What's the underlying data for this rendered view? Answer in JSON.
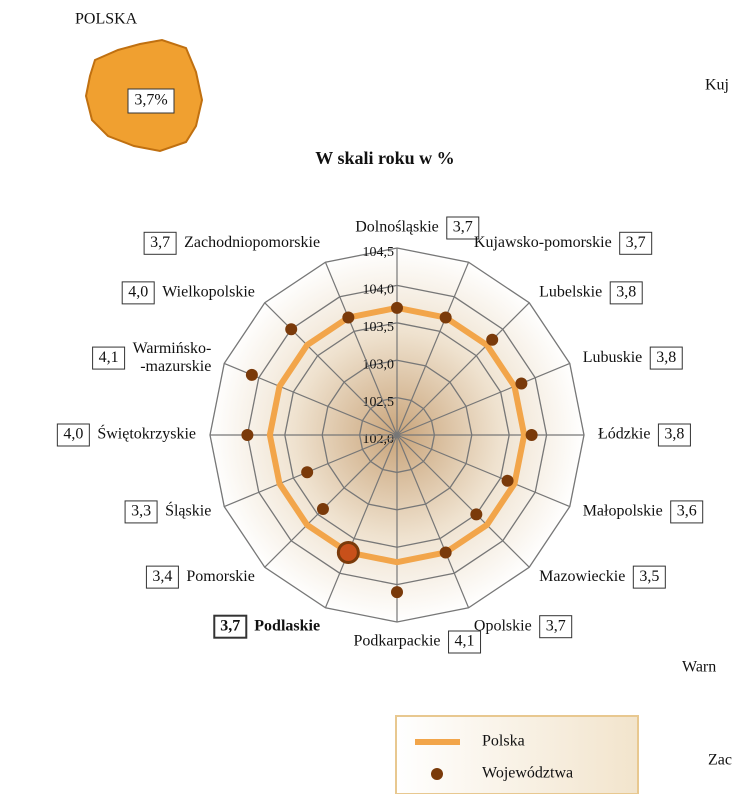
{
  "header": {
    "region": "POLSKA",
    "region_value": "3,7%"
  },
  "cropped_labels": [
    "Kuj",
    "Warn",
    "Zac"
  ],
  "chart_data": {
    "type": "radar",
    "title": "W skali roku w %",
    "categories": [
      "Dolnośląskie",
      "Kujawsko-pomorskie",
      "Lubelskie",
      "Lubuskie",
      "Łódzkie",
      "Małopolskie",
      "Mazowieckie",
      "Opolskie",
      "Podkarpackie",
      "Podlaskie",
      "Pomorskie",
      "Śląskie",
      "Świętokrzyskie",
      "Warmińsko-\n-mazurskie",
      "Wielkopolskie",
      "Zachodniopomorskie"
    ],
    "ylim": [
      102,
      104.5
    ],
    "yticks": [
      {
        "value": 102,
        "label": "102,0"
      },
      {
        "value": 102.5,
        "label": "102,5"
      },
      {
        "value": 103,
        "label": "103,0"
      },
      {
        "value": 103.5,
        "label": "103,5"
      },
      {
        "value": 104,
        "label": "104,0"
      },
      {
        "value": 104.5,
        "label": "104,5"
      }
    ],
    "highlight": "Podlaskie",
    "series": [
      {
        "name": "Polska",
        "color": "#f2a54a",
        "values": [
          103.7,
          103.7,
          103.7,
          103.7,
          103.7,
          103.7,
          103.7,
          103.7,
          103.7,
          103.7,
          103.7,
          103.7,
          103.7,
          103.7,
          103.7,
          103.7
        ]
      },
      {
        "name": "Województwa",
        "color": "#7a3a0a",
        "values": [
          103.7,
          103.7,
          103.8,
          103.8,
          103.8,
          103.6,
          103.5,
          103.7,
          104.1,
          103.7,
          103.4,
          103.3,
          104.0,
          104.1,
          104.0,
          103.7
        ],
        "value_labels": [
          "3,7",
          "3,7",
          "3,8",
          "3,8",
          "3,8",
          "3,6",
          "3,5",
          "3,7",
          "4,1",
          "3,7",
          "3,4",
          "3,3",
          "4,0",
          "4,1",
          "4,0",
          "3,7"
        ]
      }
    ]
  }
}
